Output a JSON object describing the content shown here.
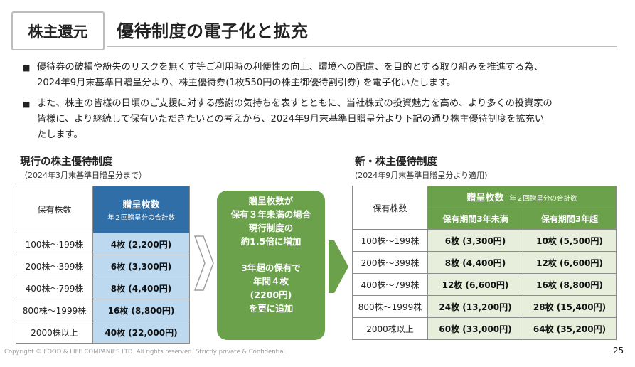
{
  "header": {
    "section_tag": "株主還元",
    "title": "優待制度の電子化と拡充"
  },
  "bullets": [
    {
      "mark": "■",
      "lines": [
        "優待券の破損や紛失のリスクを無くす等ご利用時の利便性の向上、環境への配慮、を目的とする取り組みを推進する為、",
        "2024年9月末基準日贈呈分より、株主優待券(1枚550円の株主御優待割引券) を電子化いたします。"
      ]
    },
    {
      "mark": "■",
      "lines": [
        "また、株主の皆様の日頃のご支援に対する感謝の気持ちを表すとともに、当社株式の投資魅力を高め、より多くの投資家の",
        "皆様に、より継続して保有いただきたいとの考えから、2024年9月末基準日贈呈分より下記の通り株主優待制度を拡充い",
        "たします。"
      ]
    }
  ],
  "current": {
    "title": "現行の株主優待制度",
    "subtitle": "（2024年3月末基準日贈呈分まで）",
    "col_holdings": "保有株数",
    "col_tickets": "贈呈枚数",
    "col_tickets_note": "年２回贈呈分の合計数",
    "rows": [
      {
        "shares": "100株～199株",
        "tickets": "4枚 (2,200円)"
      },
      {
        "shares": "200株～399株",
        "tickets": "6枚 (3,300円)"
      },
      {
        "shares": "400株～799株",
        "tickets": "8枚 (4,400円)"
      },
      {
        "shares": "800株～1999株",
        "tickets": "16枚 (8,800円)"
      },
      {
        "shares": "2000株以上",
        "tickets": "40枚 (22,000円)"
      }
    ]
  },
  "center_box": {
    "lines_a": [
      "贈呈枚数が",
      "保有３年未満の場合",
      "現行制度の",
      "約1.5倍に増加"
    ],
    "lines_b": [
      "3年超の保有で",
      "年間４枚",
      "(2200円)",
      "を更に追加"
    ]
  },
  "new": {
    "title": "新・株主優待制度",
    "subtitle": "(2024年9月末基準日贈呈分より適用)",
    "col_holdings": "保有株数",
    "col_tickets": "贈呈枚数",
    "col_tickets_note": "年２回贈呈分の合計数",
    "col_under3": "保有期間3年未満",
    "col_over3": "保有期間3年超",
    "rows": [
      {
        "shares": "100株～199株",
        "under3": "6枚 (3,300円)",
        "over3": "10枚 (5,500円)"
      },
      {
        "shares": "200株～399株",
        "under3": "8枚 (4,400円)",
        "over3": "12枚 (6,600円)"
      },
      {
        "shares": "400株～799株",
        "under3": "12枚 (6,600円)",
        "over3": "16枚 (8,800円)"
      },
      {
        "shares": "800株～1999株",
        "under3": "24枚 (13,200円)",
        "over3": "28枚 (15,400円)"
      },
      {
        "shares": "2000株以上",
        "under3": "60枚 (33,000円)",
        "over3": "64枚 (35,200円)"
      }
    ]
  },
  "footer": {
    "copyright": "Copyright © FOOD & LIFE COMPANIES LTD. All rights reserved. Strictly private & Confidential.",
    "page_number": "25"
  },
  "colors": {
    "current_header": "#2f6ea6",
    "current_cells": "#bcd9f0",
    "new_header": "#6aa14a",
    "new_cells": "#e7efdc"
  }
}
